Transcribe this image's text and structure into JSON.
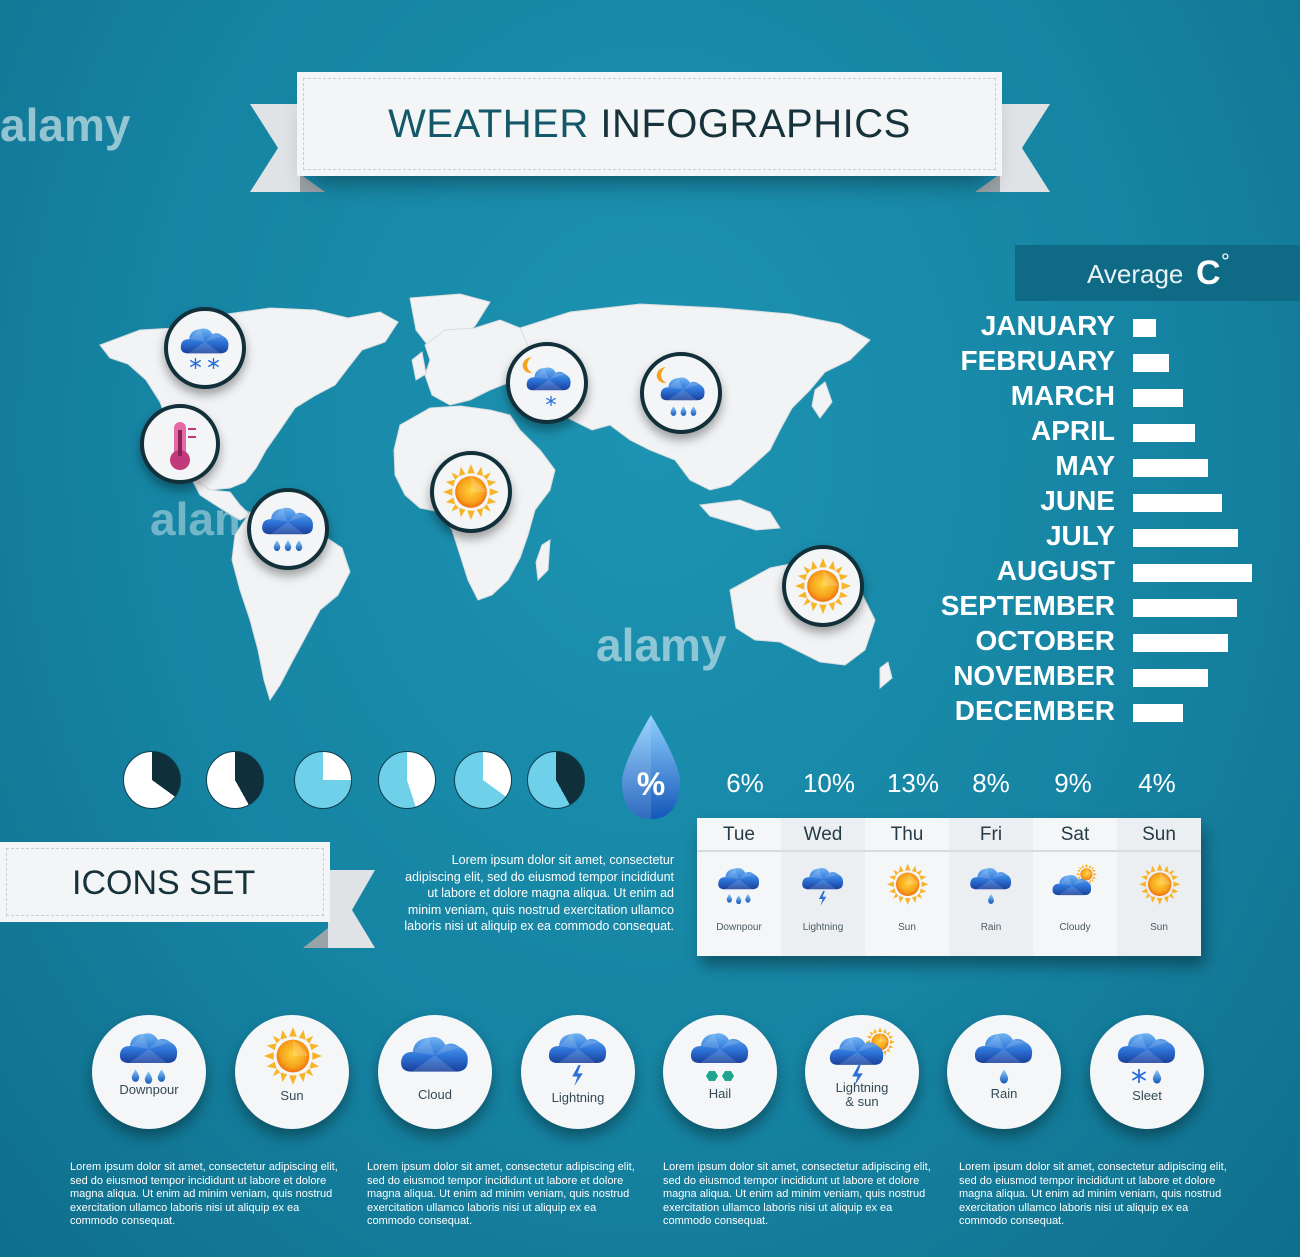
{
  "title": {
    "part1": "WEATHER",
    "part2": "INFOGRAPHICS"
  },
  "average": {
    "label": "Average",
    "unit": "C",
    "degree": "°"
  },
  "temperature_chart": {
    "months": [
      "JANUARY",
      "FEBRUARY",
      "MARCH",
      "APRIL",
      "MAY",
      "JUNE",
      "JULY",
      "AUGUST",
      "SEPTEMBER",
      "OCTOBER",
      "NOVEMBER",
      "DECEMBER"
    ],
    "relative_values": [
      0.19,
      0.3,
      0.42,
      0.52,
      0.63,
      0.75,
      0.88,
      1.0,
      0.87,
      0.8,
      0.63,
      0.42
    ]
  },
  "pie_fractions": [
    0.35,
    0.42,
    0.25,
    0.45,
    0.35,
    0.42
  ],
  "humidity": {
    "symbol": "%",
    "values": [
      "6%",
      "10%",
      "13%",
      "8%",
      "9%",
      "4%"
    ]
  },
  "forecast": [
    {
      "day": "Tue",
      "label": "Downpour",
      "icon": "downpour-icon"
    },
    {
      "day": "Wed",
      "label": "Lightning",
      "icon": "lightning-icon"
    },
    {
      "day": "Thu",
      "label": "Sun",
      "icon": "sun-icon"
    },
    {
      "day": "Fri",
      "label": "Rain",
      "icon": "rain-icon"
    },
    {
      "day": "Sat",
      "label": "Cloudy",
      "icon": "cloudy-icon"
    },
    {
      "day": "Sun",
      "label": "Sun",
      "icon": "sun-icon"
    }
  ],
  "icons_set": {
    "heading": "ICONS SET",
    "paragraph": "Lorem ipsum dolor sit amet, consectetur adipiscing elit, sed do eiusmod tempor incididunt ut labore et dolore magna aliqua. Ut enim ad minim veniam, quis nostrud exercitation ullamco laboris nisi ut aliquip ex ea commodo consequat.",
    "items": [
      {
        "line1": "Downpour",
        "line2": ""
      },
      {
        "line1": "Sun",
        "line2": ""
      },
      {
        "line1": "Cloud",
        "line2": ""
      },
      {
        "line1": "Lightning",
        "line2": ""
      },
      {
        "line1": "Hail",
        "line2": ""
      },
      {
        "line1": "Lightning",
        "line2": "& sun"
      },
      {
        "line1": "Rain",
        "line2": ""
      },
      {
        "line1": "Sleet",
        "line2": ""
      }
    ]
  },
  "footer": [
    "Lorem ipsum dolor sit amet, consectetur adipiscing elit, sed do eiusmod tempor incididunt ut labore et dolore magna aliqua. Ut enim ad minim veniam, quis nostrud exercitation ullamco laboris nisi ut aliquip ex ea commodo consequat.",
    "Lorem ipsum dolor sit amet, consectetur adipiscing elit, sed do eiusmod tempor incididunt ut labore et dolore magna aliqua. Ut enim ad minim veniam, quis nostrud exercitation ullamco laboris nisi ut aliquip ex ea commodo consequat.",
    "Lorem ipsum dolor sit amet, consectetur adipiscing elit, sed do eiusmod tempor incididunt ut labore et dolore magna aliqua. Ut enim ad minim veniam, quis nostrud exercitation ullamco laboris nisi ut aliquip ex ea commodo consequat.",
    "Lorem ipsum dolor sit amet, consectetur adipiscing elit, sed do eiusmod tempor incididunt ut labore et dolore magna aliqua. Ut enim ad minim veniam, quis nostrud exercitation ullamco laboris nisi ut aliquip ex ea commodo consequat."
  ],
  "watermark": "alamy",
  "colors": {
    "background": "#1684a3",
    "panel": "#f4f5f6",
    "dark": "#12303a",
    "cloud": "#2a6fd6",
    "sun": "#f7a21b",
    "drop": "#1e7fd0"
  }
}
